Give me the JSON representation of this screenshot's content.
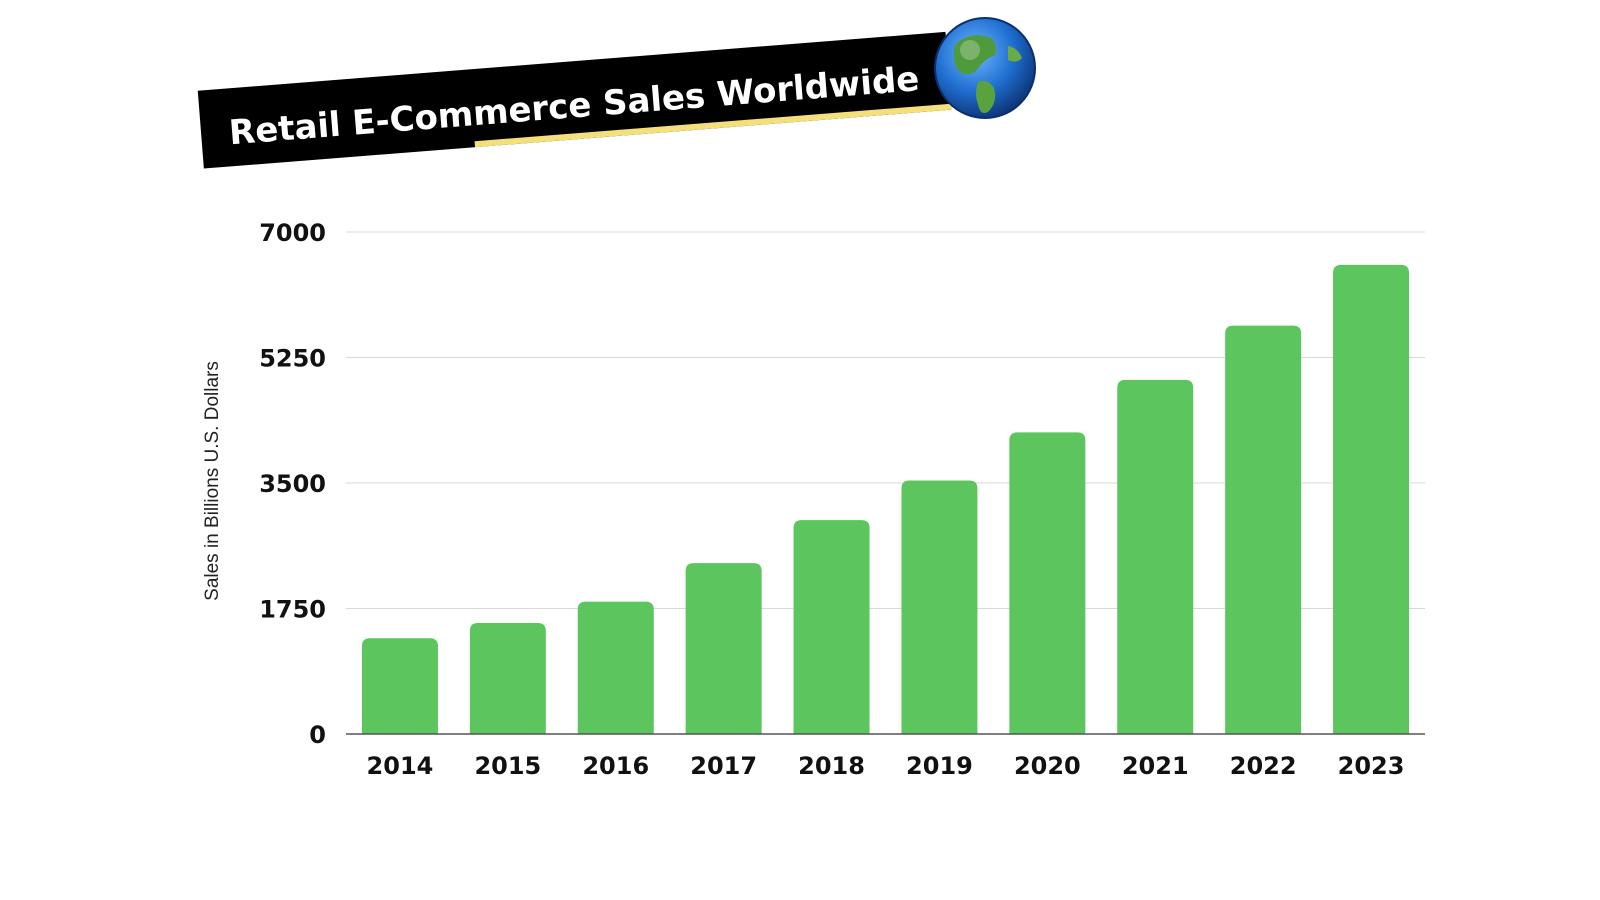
{
  "chart_data": {
    "type": "bar",
    "title": "Retail E-Commerce Sales Worldwide",
    "xlabel": "",
    "ylabel": "Sales in Billions U.S. Dollars",
    "categories": [
      "2014",
      "2015",
      "2016",
      "2017",
      "2018",
      "2019",
      "2020",
      "2021",
      "2022",
      "2023"
    ],
    "values": [
      1336,
      1548,
      1845,
      2382,
      2982,
      3535,
      4206,
      4938,
      5695,
      6542
    ],
    "ylim": [
      0,
      7000
    ],
    "yticks": [
      "0",
      "1750",
      "3500",
      "5250",
      "7000"
    ],
    "grid": true,
    "legend": "none",
    "colors": {
      "bar": "#5cc55e",
      "banner_bg": "#000000",
      "banner_text": "#ffffff",
      "banner_underline": "#f5df7a",
      "grid": "#d9d9d9",
      "axis": "#555555",
      "tick_text": "#111111",
      "ylabel_text": "#222222"
    },
    "icons": [
      "globe-icon"
    ]
  }
}
